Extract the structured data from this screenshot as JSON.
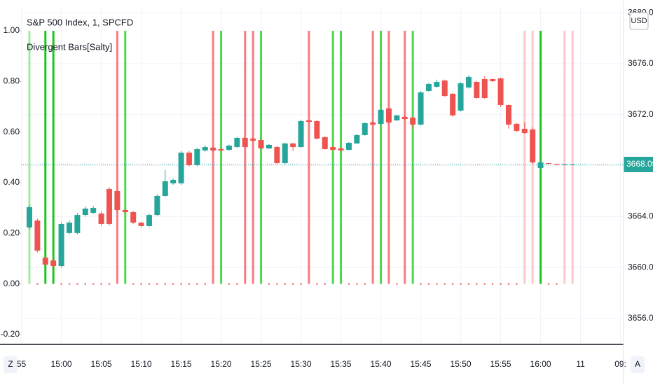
{
  "chart_data": {
    "type": "candlestick",
    "title": "S&P 500 Index, 1, SPCFD",
    "currency": "USD",
    "buttons": [
      "Z",
      "A"
    ],
    "x": [
      0,
      1,
      2,
      3,
      4,
      5,
      6,
      7,
      8,
      9,
      10,
      11,
      12,
      13,
      14,
      15,
      16,
      17,
      18,
      19,
      20,
      21,
      22,
      23,
      24,
      25,
      26,
      27,
      28,
      29,
      30,
      31,
      32,
      33,
      34,
      35,
      36,
      37,
      38,
      39,
      40,
      41,
      42,
      43,
      44,
      45,
      46,
      47,
      48,
      49,
      50,
      51,
      52,
      53,
      54,
      55,
      56,
      57,
      58,
      59,
      60,
      61,
      62,
      63,
      64,
      65,
      66,
      67,
      68
    ],
    "open": [
      3663.15,
      3663.69,
      3660.78,
      3660.56,
      3660.12,
      3662.71,
      3662.71,
      3664.13,
      3664.3,
      3664.24,
      3666.17,
      3666.0,
      3664.52,
      3664.35,
      3663.53,
      3663.26,
      3664.13,
      3665.62,
      3666.61,
      3666.61,
      3669.02,
      3668.04,
      3669.19,
      3669.41,
      3669.3,
      3669.24,
      3669.46,
      3670.18,
      3670.12,
      3670.01,
      3669.35,
      3669.46,
      3668.2,
      3669.74,
      3669.46,
      3671.55,
      3671.5,
      3670.23,
      3669.46,
      3669.35,
      3669.24,
      3669.74,
      3670.4,
      3671.39,
      3671.28,
      3672.49,
      3671.55,
      3671.83,
      3671.77,
      3671.22,
      3673.86,
      3674.19,
      3674.68,
      3673.64,
      3672.32,
      3674.13,
      3674.57,
      3674.79,
      3674.79,
      3674.85,
      3672.76,
      3671.28,
      3670.89,
      3670.84,
      3667.82,
      3668.2,
      3668.14,
      3668.09,
      3668.09
    ],
    "high": [
      3664.9,
      3663.85,
      3660.9,
      3661.0,
      3663.55,
      3663.7,
      3664.3,
      3664.8,
      3664.85,
      3664.4,
      3666.3,
      3666.1,
      3664.6,
      3664.45,
      3663.6,
      3664.25,
      3665.75,
      3667.65,
      3667.0,
      3669.15,
      3669.15,
      3669.4,
      3669.6,
      3669.5,
      3669.35,
      3669.65,
      3670.25,
      3670.25,
      3670.2,
      3670.1,
      3669.7,
      3669.55,
      3669.8,
      3669.8,
      3671.6,
      3671.6,
      3671.55,
      3670.3,
      3669.55,
      3669.4,
      3669.85,
      3670.5,
      3671.4,
      3671.45,
      3672.45,
      3672.55,
      3672.0,
      3671.9,
      3671.85,
      3673.85,
      3674.5,
      3674.75,
      3674.75,
      3673.7,
      3674.55,
      3675.1,
      3674.65,
      3675.0,
      3674.85,
      3674.9,
      3672.8,
      3671.35,
      3671.4,
      3671.0,
      3668.3,
      3668.2,
      3668.15,
      3668.12,
      3668.12
    ],
    "low": [
      3663.0,
      3661.2,
      3660.1,
      3659.85,
      3660.0,
      3662.6,
      3662.6,
      3664.0,
      3664.2,
      3663.3,
      3663.3,
      3664.4,
      3664.25,
      3663.4,
      3663.15,
      3663.2,
      3664.05,
      3665.55,
      3666.5,
      3666.5,
      3667.95,
      3667.95,
      3669.1,
      3669.1,
      3669.1,
      3669.15,
      3669.4,
      3669.4,
      3669.9,
      3669.3,
      3669.3,
      3668.1,
      3668.1,
      3669.15,
      3669.4,
      3671.4,
      3670.05,
      3669.25,
      3669.2,
      3669.1,
      3669.2,
      3669.7,
      3670.35,
      3671.15,
      3671.2,
      3671.3,
      3671.5,
      3671.6,
      3670.9,
      3671.15,
      3673.8,
      3674.1,
      3673.4,
      3671.85,
      3672.25,
      3674.05,
      3673.25,
      3673.25,
      3674.55,
      3672.6,
      3670.9,
      3670.65,
      3670.5,
      3668.15,
      3667.7,
      3668.1,
      3668.05,
      3668.06,
      3668.06
    ],
    "close": [
      3664.74,
      3661.33,
      3660.23,
      3660.12,
      3663.42,
      3663.53,
      3664.13,
      3664.63,
      3664.68,
      3663.42,
      3663.42,
      3664.52,
      3664.35,
      3663.53,
      3663.26,
      3664.13,
      3665.62,
      3666.77,
      3666.88,
      3669.02,
      3668.04,
      3669.3,
      3669.46,
      3669.19,
      3669.19,
      3669.57,
      3670.18,
      3669.46,
      3669.96,
      3669.35,
      3669.63,
      3668.2,
      3669.74,
      3669.46,
      3671.5,
      3671.44,
      3670.12,
      3669.3,
      3669.24,
      3669.19,
      3669.79,
      3670.4,
      3671.33,
      3671.22,
      3672.38,
      3671.39,
      3671.94,
      3671.66,
      3671.22,
      3673.75,
      3674.41,
      3674.57,
      3673.47,
      3671.94,
      3674.46,
      3674.96,
      3673.31,
      3673.31,
      3674.63,
      3672.76,
      3671.22,
      3670.73,
      3670.56,
      3668.25,
      3668.25,
      3668.14,
      3668.09,
      3668.09,
      3668.09
    ],
    "up_color": "#26a69a",
    "down_color": "#ef5350",
    "last_price": 3668.09,
    "xlim": [
      -1.05,
      74.39
    ],
    "xticks": [
      {
        "value": -1,
        "label": "55"
      },
      {
        "value": 4,
        "label": "15:00"
      },
      {
        "value": 9,
        "label": "15:05"
      },
      {
        "value": 14,
        "label": "15:10"
      },
      {
        "value": 19,
        "label": "15:15"
      },
      {
        "value": 24,
        "label": "15:20"
      },
      {
        "value": 29,
        "label": "15:25"
      },
      {
        "value": 34,
        "label": "15:30"
      },
      {
        "value": 39,
        "label": "15:35"
      },
      {
        "value": 44,
        "label": "15:40"
      },
      {
        "value": 49,
        "label": "15:45"
      },
      {
        "value": 54,
        "label": "15:50"
      },
      {
        "value": 59,
        "label": "15:55"
      },
      {
        "value": 64,
        "label": "16:00"
      },
      {
        "value": 69,
        "label": "11"
      },
      {
        "value": 74,
        "label": "09:"
      }
    ],
    "y2lim": [
      3653.97,
      3680.45
    ],
    "y2ticks": [
      {
        "value": 3656,
        "label": "3656.00"
      },
      {
        "value": 3660,
        "label": "3660.00"
      },
      {
        "value": 3664,
        "label": "3664.00"
      },
      {
        "value": 3668,
        "label": "3668.00"
      },
      {
        "value": 3672,
        "label": "3672.00"
      },
      {
        "value": 3676,
        "label": "3676.00"
      },
      {
        "value": 3680,
        "label": "3680.00"
      }
    ],
    "grid": true,
    "indicator": {
      "name": "Divergent Bars[Salty]",
      "values": [
        1,
        0,
        1,
        1,
        0,
        0,
        0,
        0,
        0,
        0,
        0,
        1,
        1,
        0,
        0,
        0,
        0,
        0,
        0,
        0,
        0,
        0,
        0,
        1,
        1,
        0,
        0,
        1,
        1,
        1,
        0,
        0,
        0,
        0,
        0,
        1,
        0,
        0,
        1,
        1,
        0,
        0,
        0,
        1,
        1,
        1,
        0,
        1,
        1,
        0,
        0,
        0,
        0,
        0,
        0,
        0,
        0,
        0,
        0,
        0,
        0,
        0,
        1,
        1,
        1,
        0,
        0,
        1,
        1
      ],
      "colors": [
        "#a5e8a5",
        "#f77c80",
        "#1fc41f",
        "#1fc41f",
        "#f77c80",
        "#f77c80",
        "#f77c80",
        "#f77c80",
        "#f77c80",
        "#f77c80",
        "#f77c80",
        "#f77c80",
        "#4cd94c",
        "#f77c80",
        "#f77c80",
        "#f77c80",
        "#f77c80",
        "#f77c80",
        "#f77c80",
        "#f77c80",
        "#f77c80",
        "#f77c80",
        "#f77c80",
        "#f77c80",
        "#4cd94c",
        "#f77c80",
        "#f77c80",
        "#f77c80",
        "#f77c80",
        "#4cd94c",
        "#f77c80",
        "#f77c80",
        "#f77c80",
        "#f77c80",
        "#f77c80",
        "#f77c80",
        "#f77c80",
        "#f77c80",
        "#4cd94c",
        "#4cd94c",
        "#f77c80",
        "#f77c80",
        "#f77c80",
        "#f77c80",
        "#4cd94c",
        "#f77c80",
        "#f77c80",
        "#f77c80",
        "#4cd94c",
        "#f77c80",
        "#f77c80",
        "#f77c80",
        "#f77c80",
        "#f77c80",
        "#f77c80",
        "#f77c80",
        "#f77c80",
        "#f77c80",
        "#f77c80",
        "#f77c80",
        "#f77c80",
        "#f77c80",
        "#fcc8cb",
        "#fcc8cb",
        "#1fc41f",
        "#f77c80",
        "#f77c80",
        "#fcc8cb",
        "#fcc8cb"
      ],
      "ylim": [
        -0.239,
        1.094
      ],
      "yticks": [
        {
          "value": -0.2,
          "label": "-0.20"
        },
        {
          "value": 0,
          "label": "0.00"
        },
        {
          "value": 0.2,
          "label": "0.20"
        },
        {
          "value": 0.4,
          "label": "0.40"
        },
        {
          "value": 0.6,
          "label": "0.60"
        },
        {
          "value": 0.8,
          "label": "0.80"
        },
        {
          "value": 1,
          "label": "1.00"
        }
      ]
    }
  }
}
